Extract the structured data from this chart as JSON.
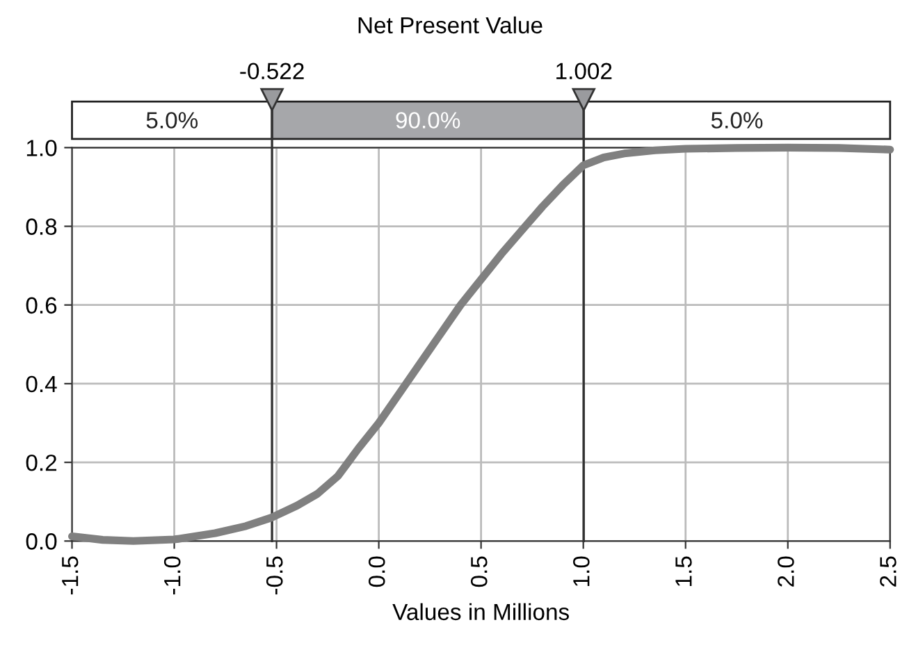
{
  "chart_data": {
    "type": "line",
    "title": "Net Present Value",
    "xlabel": "Values in Millions",
    "x": [
      -1.5,
      -1.35,
      -1.2,
      -1.0,
      -0.8,
      -0.65,
      -0.522,
      -0.4,
      -0.3,
      -0.2,
      -0.15,
      -0.1,
      0.0,
      0.1,
      0.2,
      0.3,
      0.4,
      0.5,
      0.6,
      0.7,
      0.8,
      0.9,
      1.0,
      1.1,
      1.2,
      1.35,
      1.5,
      1.75,
      2.0,
      2.25,
      2.5
    ],
    "series": [
      {
        "color": "#808080",
        "values": [
          0.012,
          0.003,
          0.0,
          0.004,
          0.02,
          0.038,
          0.06,
          0.09,
          0.12,
          0.165,
          0.2,
          0.235,
          0.3,
          0.375,
          0.45,
          0.525,
          0.6,
          0.665,
          0.73,
          0.79,
          0.85,
          0.905,
          0.955,
          0.975,
          0.985,
          0.993,
          0.997,
          0.999,
          1.0,
          0.999,
          0.995
        ]
      }
    ],
    "xlim": [
      -1.5,
      2.5
    ],
    "ylim": [
      0,
      1.0
    ],
    "xticks": [
      -1.5,
      {
        "value": -1,
        "label": "-1.0"
      },
      -0.5,
      {
        "value": 0,
        "label": "0.0"
      },
      0.5,
      {
        "value": 1,
        "label": "1.0"
      },
      1.5,
      {
        "value": 2,
        "label": "2.0"
      },
      2.5
    ],
    "yticks": [
      {
        "value": 0,
        "label": "0.0"
      },
      0.2,
      0.4,
      0.6,
      0.8,
      {
        "value": 1,
        "label": "1.0"
      }
    ],
    "grid": true,
    "line_style": "solid",
    "marker": "none",
    "ref_lines": [
      {
        "axis": "x",
        "value": -0.522,
        "label": "-0.522",
        "color": "#333333"
      },
      {
        "axis": "x",
        "value": 1.002,
        "label": "1.002",
        "color": "#333333"
      }
    ],
    "annotations": [
      "5.0%",
      "90.0%",
      "5.0%"
    ]
  }
}
